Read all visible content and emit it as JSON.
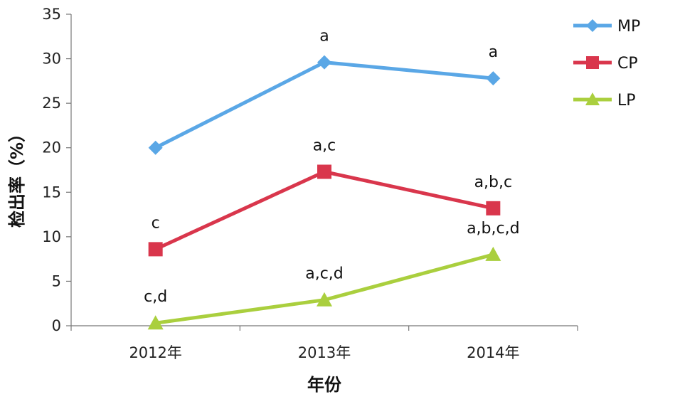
{
  "chart_data": {
    "type": "line",
    "xlabel": "年份",
    "ylabel": "检出率（%）",
    "categories": [
      "2012年",
      "2013年",
      "2014年"
    ],
    "ylim": [
      0,
      35
    ],
    "yticks": [
      "0",
      "5",
      "10",
      "15",
      "20",
      "25",
      "30",
      "35"
    ],
    "grid": false,
    "legend_position": "top-right",
    "series": [
      {
        "name": "MP",
        "color": "#5aa7e6",
        "marker": "diamond",
        "values": [
          20.0,
          29.6,
          27.8
        ],
        "labels": [
          "",
          "a",
          "a"
        ]
      },
      {
        "name": "CP",
        "color": "#d9364c",
        "marker": "square",
        "values": [
          8.6,
          17.3,
          13.2
        ],
        "labels": [
          "c",
          "a,c",
          "a,b,c"
        ]
      },
      {
        "name": "LP",
        "color": "#aacf3e",
        "marker": "triangle",
        "values": [
          0.3,
          2.9,
          8.0
        ],
        "labels": [
          "c,d",
          "a,c,d",
          "a,b,c,d"
        ]
      }
    ]
  }
}
